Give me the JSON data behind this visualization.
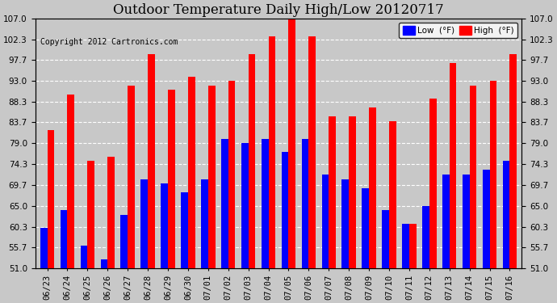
{
  "title": "Outdoor Temperature Daily High/Low 20120717",
  "copyright": "Copyright 2012 Cartronics.com",
  "ylabel_right": "",
  "background_color": "#c8c8c8",
  "plot_background": "#c8c8c8",
  "grid_color": "white",
  "categories": [
    "06/23",
    "06/24",
    "06/25",
    "06/26",
    "06/27",
    "06/28",
    "06/29",
    "06/30",
    "07/01",
    "07/02",
    "07/03",
    "07/04",
    "07/05",
    "07/06",
    "07/07",
    "07/08",
    "07/09",
    "07/10",
    "07/11",
    "07/12",
    "07/13",
    "07/14",
    "07/15",
    "07/16"
  ],
  "highs": [
    82,
    90,
    75,
    76,
    92,
    99,
    91,
    94,
    92,
    93,
    99,
    103,
    107,
    103,
    85,
    85,
    87,
    84,
    61,
    89,
    97,
    92,
    93,
    99
  ],
  "lows": [
    60,
    64,
    56,
    53,
    63,
    71,
    70,
    68,
    71,
    80,
    79,
    80,
    77,
    80,
    72,
    71,
    69,
    64,
    61,
    65,
    72,
    72,
    73,
    75
  ],
  "high_color": "#ff0000",
  "low_color": "#0000ff",
  "ylim_min": 51.0,
  "ylim_max": 107.0,
  "yticks": [
    51.0,
    55.7,
    60.3,
    65.0,
    69.7,
    74.3,
    79.0,
    83.7,
    88.3,
    93.0,
    97.7,
    102.3,
    107.0
  ],
  "bar_width": 0.35,
  "legend_low_label": "Low  (°F)",
  "legend_high_label": "High  (°F)"
}
